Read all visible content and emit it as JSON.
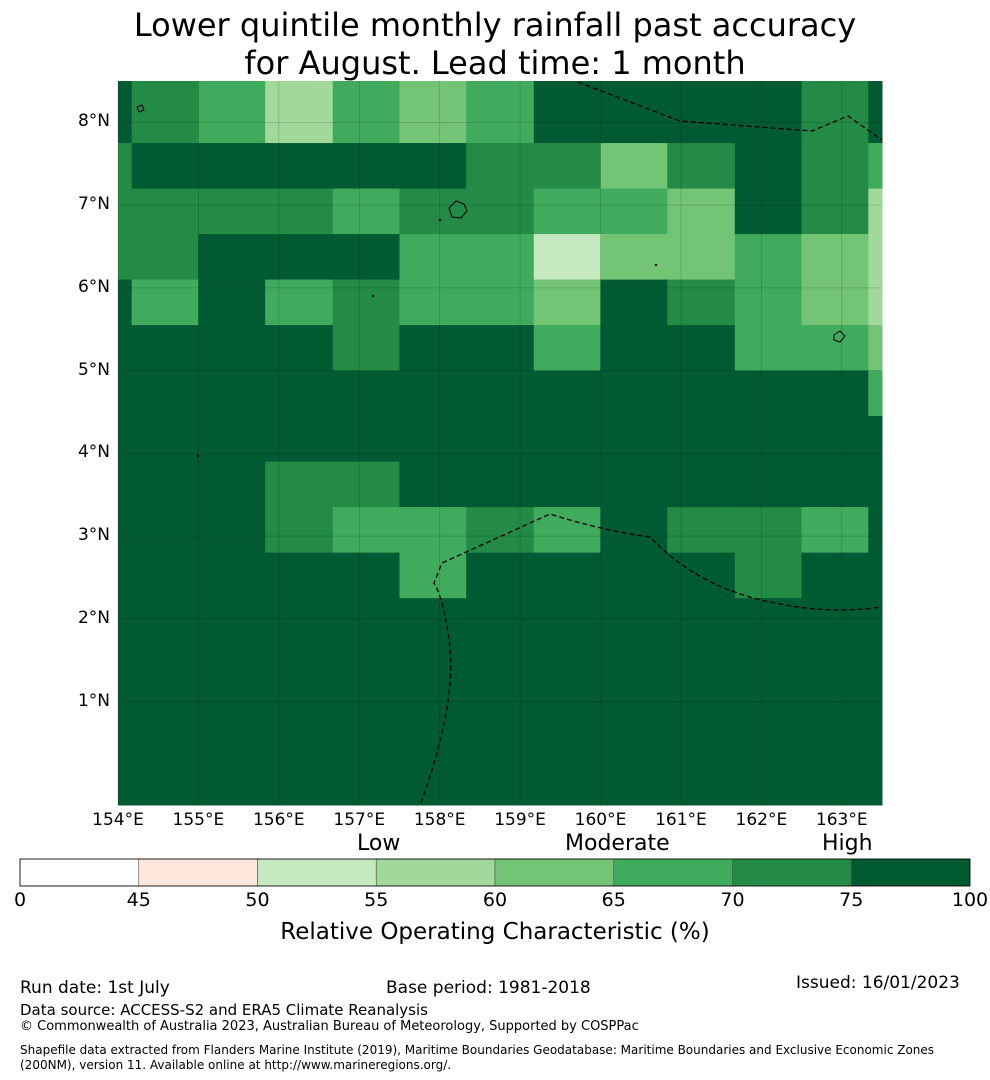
{
  "title": {
    "line1": "Lower quintile monthly rainfall past accuracy",
    "line2": "for August. Lead time: 1 month"
  },
  "map": {
    "lon_range": [
      154,
      163.5
    ],
    "lat_range": [
      -0.25,
      8.5
    ],
    "lat_ticks": [
      8,
      7,
      6,
      5,
      4,
      3,
      2,
      1
    ],
    "lat_labels": [
      "8°N",
      "7°N",
      "6°N",
      "5°N",
      "4°N",
      "3°N",
      "2°N",
      "1°N"
    ],
    "lon_ticks": [
      154,
      155,
      156,
      157,
      158,
      159,
      160,
      161,
      162,
      163
    ],
    "lon_labels": [
      "154°E",
      "155°E",
      "156°E",
      "157°E",
      "158°E",
      "159°E",
      "160°E",
      "161°E",
      "162°E",
      "163°E"
    ],
    "grid_rows": [
      {
        "top_lat": 8.5,
        "cells": [
          7,
          6,
          5,
          3,
          5,
          4,
          5,
          7,
          7,
          7,
          7,
          6,
          7
        ]
      },
      {
        "top_lat": 7.75,
        "cells": [
          6,
          7,
          7,
          7,
          7,
          7,
          6,
          6,
          4,
          6,
          7,
          6,
          5
        ]
      },
      {
        "top_lat": 7.2,
        "cells": [
          6,
          6,
          6,
          6,
          5,
          6,
          6,
          5,
          5,
          4,
          7,
          6,
          3
        ]
      },
      {
        "top_lat": 6.65,
        "cells": [
          6,
          6,
          7,
          7,
          7,
          5,
          5,
          2,
          4,
          4,
          5,
          4,
          3
        ]
      },
      {
        "top_lat": 6.1,
        "cells": [
          7,
          5,
          7,
          5,
          6,
          5,
          5,
          4,
          7,
          6,
          5,
          4,
          3
        ]
      },
      {
        "top_lat": 5.55,
        "cells": [
          7,
          7,
          7,
          7,
          6,
          7,
          7,
          5,
          7,
          7,
          5,
          5,
          4
        ]
      },
      {
        "top_lat": 5.0,
        "cells": [
          7,
          7,
          7,
          7,
          7,
          7,
          7,
          7,
          7,
          7,
          7,
          7,
          5
        ]
      },
      {
        "top_lat": 4.45,
        "cells": [
          7,
          7,
          7,
          7,
          7,
          7,
          7,
          7,
          7,
          7,
          7,
          7,
          7
        ]
      },
      {
        "top_lat": 3.9,
        "cells": [
          7,
          7,
          7,
          6,
          6,
          7,
          7,
          7,
          7,
          7,
          7,
          7,
          7
        ]
      },
      {
        "top_lat": 3.35,
        "cells": [
          7,
          7,
          7,
          6,
          5,
          5,
          6,
          5,
          7,
          6,
          6,
          5,
          7
        ]
      },
      {
        "top_lat": 2.8,
        "cells": [
          7,
          7,
          7,
          7,
          7,
          5,
          7,
          7,
          7,
          7,
          6,
          7,
          7
        ]
      },
      {
        "top_lat": 2.25,
        "cells": [
          7,
          7,
          7,
          7,
          7,
          7,
          7,
          7,
          7,
          7,
          7,
          7,
          7
        ]
      }
    ],
    "cell_bounds_lon": [
      154,
      154.17,
      155,
      155.83,
      156.67,
      157.5,
      158.33,
      159.17,
      160,
      160.83,
      161.67,
      162.5,
      163.33,
      163.5
    ],
    "default_level": 7
  },
  "colorbar": {
    "levels": [
      0,
      45,
      50,
      55,
      60,
      65,
      70,
      75,
      100
    ],
    "tick_labels": [
      "0",
      "45",
      "50",
      "55",
      "60",
      "65",
      "70",
      "75",
      "100"
    ],
    "colors": [
      "#ffffff",
      "#fee8dd",
      "#c7e9c0",
      "#a1d99b",
      "#74c476",
      "#41ab5d",
      "#238b45",
      "#005a32"
    ],
    "category_labels": {
      "low": "Low",
      "moderate": "Moderate",
      "high": "High"
    },
    "title": "Relative Operating Characteristic (%)"
  },
  "footer": {
    "run_date": "Run date: 1st July",
    "base_period": "Base period: 1981-2018",
    "issued": "Issued: 16/01/2023",
    "data_source": "Data source: ACCESS-S2 and ERA5 Climate Reanalysis",
    "copyright": "© Commonwealth of Australia 2023, Australian Bureau of Meteorology, Supported by COSPPac",
    "shapefile_note": "Shapefile data extracted from Flanders Marine Institute (2019), Maritime Boundaries Geodatabase: Maritime Boundaries and Exclusive Economic Zones (200NM), version 11. Available online at http://www.marineregions.org/."
  }
}
